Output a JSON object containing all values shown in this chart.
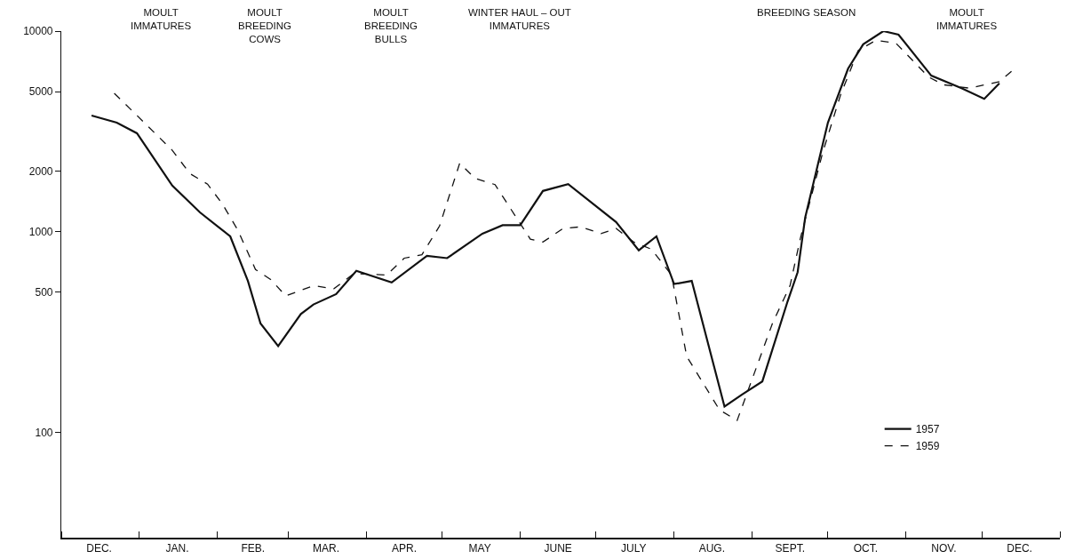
{
  "chart_data": {
    "type": "line",
    "series": [
      {
        "name": "1957",
        "color": "#111111",
        "line_style": "solid",
        "x": [
          "1956-12-13",
          "1956-12-23",
          "1956-12-31",
          "1957-01-14",
          "1957-01-25",
          "1957-02-06",
          "1957-02-13",
          "1957-02-18",
          "1957-02-25",
          "1957-03-06",
          "1957-03-11",
          "1957-03-20",
          "1957-03-28",
          "1957-04-11",
          "1957-04-25",
          "1957-05-03",
          "1957-05-17",
          "1957-05-25",
          "1957-06-01",
          "1957-06-10",
          "1957-06-20",
          "1957-07-09",
          "1957-07-18",
          "1957-07-25",
          "1957-08-01",
          "1957-08-08",
          "1957-08-21",
          "1957-08-28",
          "1957-09-05",
          "1957-09-15",
          "1957-09-19",
          "1957-09-22",
          "1957-10-01",
          "1957-10-09",
          "1957-10-15",
          "1957-10-23",
          "1957-10-29",
          "1957-11-11",
          "1957-11-23",
          "1957-12-02",
          "1957-12-08"
        ],
        "values": [
          3800,
          3500,
          3100,
          1700,
          1250,
          950,
          570,
          350,
          270,
          390,
          435,
          490,
          640,
          560,
          760,
          740,
          980,
          1080,
          1080,
          1600,
          1730,
          1120,
          810,
          950,
          550,
          570,
          135,
          155,
          180,
          450,
          630,
          1180,
          3500,
          6500,
          8600,
          10000,
          9600,
          6000,
          5200,
          4600,
          5500
        ]
      },
      {
        "name": "1959",
        "color": "#111111",
        "line_style": "dashed",
        "x": [
          "1956-12-22",
          "1956-12-31",
          "1957-01-14",
          "1957-01-21",
          "1957-01-28",
          "1957-02-03",
          "1957-02-09",
          "1957-02-16",
          "1957-02-22",
          "1957-02-28",
          "1957-03-11",
          "1957-03-19",
          "1957-03-27",
          "1957-04-09",
          "1957-04-16",
          "1957-04-23",
          "1957-04-30",
          "1957-05-08",
          "1957-05-14",
          "1957-05-22",
          "1957-06-05",
          "1957-06-10",
          "1957-06-18",
          "1957-06-25",
          "1957-07-03",
          "1957-07-09",
          "1957-07-16",
          "1957-07-23",
          "1957-07-31",
          "1957-08-06",
          "1957-08-19",
          "1957-08-26",
          "1957-09-09",
          "1957-09-16",
          "1957-09-20",
          "1957-09-29",
          "1957-10-06",
          "1957-10-13",
          "1957-10-20",
          "1957-10-28",
          "1957-11-10",
          "1957-11-16",
          "1957-11-26",
          "1957-12-08",
          "1957-12-14"
        ],
        "values": [
          4900,
          3800,
          2550,
          1950,
          1730,
          1370,
          1020,
          650,
          580,
          480,
          540,
          520,
          620,
          610,
          740,
          770,
          1070,
          2200,
          1850,
          1720,
          920,
          890,
          1040,
          1060,
          980,
          1040,
          890,
          820,
          610,
          240,
          130,
          115,
          350,
          540,
          920,
          2500,
          4800,
          8000,
          9000,
          8700,
          5900,
          5400,
          5200,
          5600,
          6500
        ]
      }
    ],
    "xlim": [
      "1956-12-01",
      "1958-01-01"
    ],
    "xticks": [
      {
        "value": "1956-12-01",
        "label": null
      },
      {
        "value": "1956-12-16",
        "label": "DEC."
      },
      {
        "value": "1957-01-01",
        "label": null
      },
      {
        "value": "1957-01-16",
        "label": "JAN."
      },
      {
        "value": "1957-02-01",
        "label": null
      },
      {
        "value": "1957-02-15",
        "label": "FEB."
      },
      {
        "value": "1957-03-01",
        "label": null
      },
      {
        "value": "1957-03-16",
        "label": "MAR."
      },
      {
        "value": "1957-04-01",
        "label": null
      },
      {
        "value": "1957-04-16",
        "label": "APR."
      },
      {
        "value": "1957-05-01",
        "label": null
      },
      {
        "value": "1957-05-16",
        "label": "MAY"
      },
      {
        "value": "1957-06-01",
        "label": null
      },
      {
        "value": "1957-06-16",
        "label": "JUNE"
      },
      {
        "value": "1957-07-01",
        "label": null
      },
      {
        "value": "1957-07-16",
        "label": "JULY"
      },
      {
        "value": "1957-08-01",
        "label": null
      },
      {
        "value": "1957-08-16",
        "label": "AUG."
      },
      {
        "value": "1957-09-01",
        "label": null
      },
      {
        "value": "1957-09-16",
        "label": "SEPT."
      },
      {
        "value": "1957-10-01",
        "label": null
      },
      {
        "value": "1957-10-16",
        "label": "OCT."
      },
      {
        "value": "1957-11-01",
        "label": null
      },
      {
        "value": "1957-11-16",
        "label": "NOV."
      },
      {
        "value": "1957-12-01",
        "label": null
      },
      {
        "value": "1957-12-16",
        "label": "DEC."
      },
      {
        "value": "1958-01-01",
        "label": null
      }
    ],
    "ylim": [
      30,
      10000
    ],
    "yticks": [
      100,
      500,
      1000,
      2000,
      5000,
      10000
    ],
    "log": "y",
    "grid": false,
    "legend": "bottom right",
    "marker": "none",
    "annotations": [
      "MOULT\nIMMATURES",
      "MOULT\nBREEDING\nCOWS",
      "MOULT\nBREEDING\nBULLS",
      "WINTER HAUL – OUT\nIMMATURES",
      "BREEDING SEASON",
      "MOULT\nIMMATURES"
    ]
  }
}
